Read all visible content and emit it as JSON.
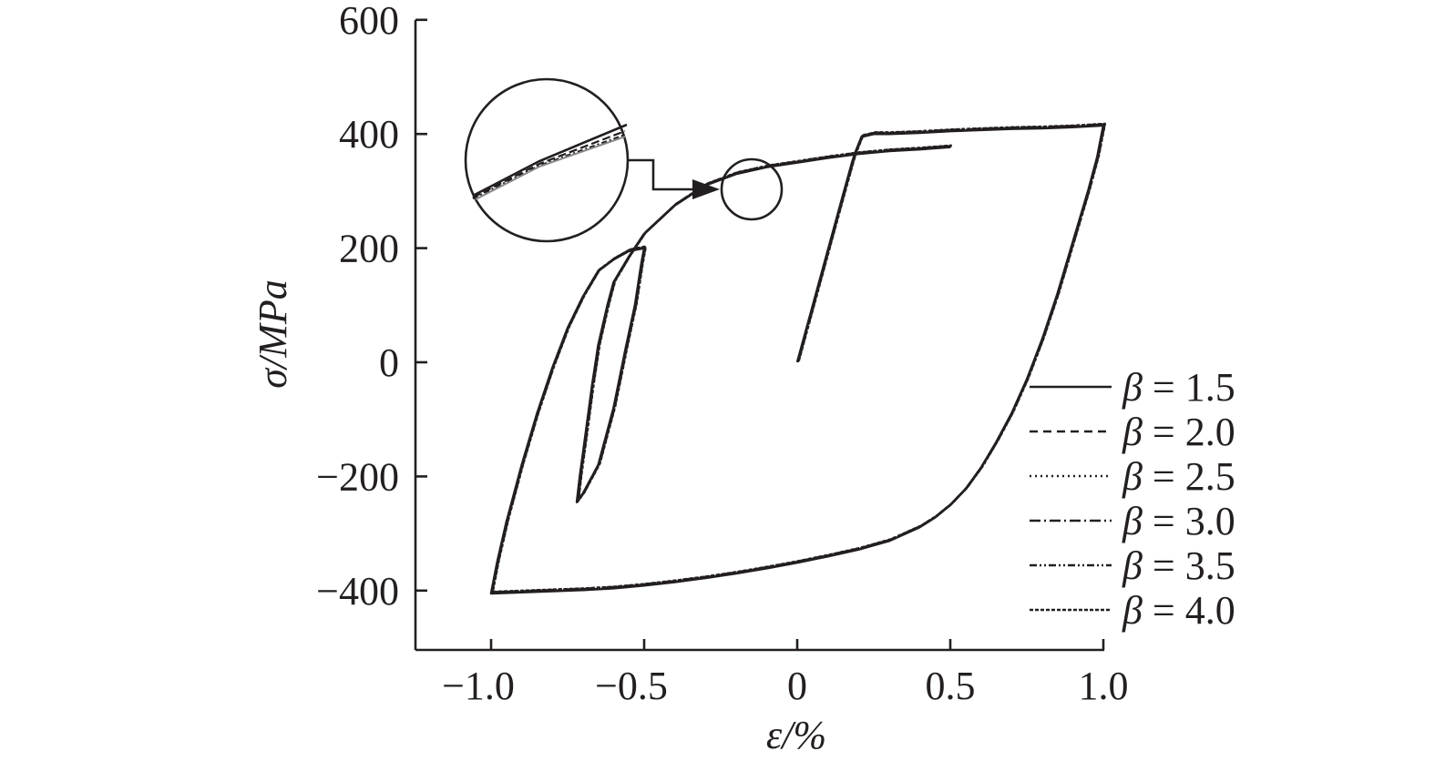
{
  "chart_data": {
    "type": "line",
    "title": "",
    "xlabel": "ε/%",
    "ylabel": "σ/MPa",
    "xlim": [
      -1.25,
      1.0
    ],
    "ylim": [
      -500,
      600
    ],
    "xticks": [
      -1.0,
      -0.5,
      0,
      0.5,
      1.0
    ],
    "xtick_labels": [
      "−1.0",
      "−0.5",
      "0",
      "0.5",
      "1.0"
    ],
    "yticks": [
      600,
      400,
      200,
      0,
      -200,
      -400
    ],
    "ytick_labels": [
      "600",
      "400",
      "200",
      "0",
      "−200",
      "−400"
    ],
    "grid": false,
    "legend_position": "right",
    "inset": "magnified circle of curves near ε = −0.15 %, σ = 300 MPa",
    "series_shared_path": {
      "x": [
        0,
        0.05,
        0.1,
        0.15,
        0.18,
        0.19,
        0.21,
        0.25,
        0.3,
        0.4,
        0.5,
        0.6,
        0.7,
        0.8,
        0.9,
        1.0,
        0.98,
        0.95,
        0.9,
        0.85,
        0.8,
        0.75,
        0.7,
        0.65,
        0.6,
        0.55,
        0.5,
        0.45,
        0.4,
        0.3,
        0.2,
        0.1,
        0,
        -0.1,
        -0.2,
        -0.3,
        -0.4,
        -0.5,
        -0.6,
        -0.7,
        -0.8,
        -0.9,
        -1.0,
        -0.98,
        -0.95,
        -0.9,
        -0.85,
        -0.8,
        -0.75,
        -0.7,
        -0.65,
        -0.6,
        -0.55,
        -0.5,
        -0.51,
        -0.53,
        -0.56,
        -0.6,
        -0.65,
        -0.7,
        -0.72,
        -0.71,
        -0.69,
        -0.67,
        -0.65,
        -0.62,
        -0.6,
        -0.55,
        -0.5,
        -0.4,
        -0.3,
        -0.2,
        -0.1,
        0,
        0.1,
        0.2,
        0.3,
        0.4,
        0.5
      ],
      "y": [
        0,
        98,
        196,
        294,
        352,
        368,
        395,
        400,
        400,
        402,
        405,
        407,
        409,
        410,
        412,
        415,
        360,
        300,
        210,
        120,
        40,
        -30,
        -90,
        -140,
        -185,
        -222,
        -250,
        -272,
        -289,
        -313,
        -328,
        -340,
        -351,
        -361,
        -370,
        -378,
        -385,
        -391,
        -396,
        -399,
        -401,
        -403,
        -405,
        -350,
        -280,
        -180,
        -90,
        -10,
        60,
        115,
        160,
        180,
        195,
        200,
        170,
        100,
        25,
        -80,
        -180,
        -230,
        -245,
        -200,
        -120,
        -40,
        30,
        100,
        140,
        185,
        225,
        275,
        310,
        330,
        342,
        350,
        358,
        365,
        370,
        373,
        377
      ]
    },
    "series": [
      {
        "name": "β = 1.5",
        "dash": ""
      },
      {
        "name": "β = 2.0",
        "dash": "9 6"
      },
      {
        "name": "β = 2.5",
        "dash": "2 4"
      },
      {
        "name": "β = 3.0",
        "dash": "12 4 2 4"
      },
      {
        "name": "β = 3.5",
        "dash": "8 3 2 3 2 3"
      },
      {
        "name": "β = 4.0",
        "dash": "4 2"
      }
    ],
    "colors": {
      "ink": "#231f20",
      "background": "#ffffff"
    }
  }
}
